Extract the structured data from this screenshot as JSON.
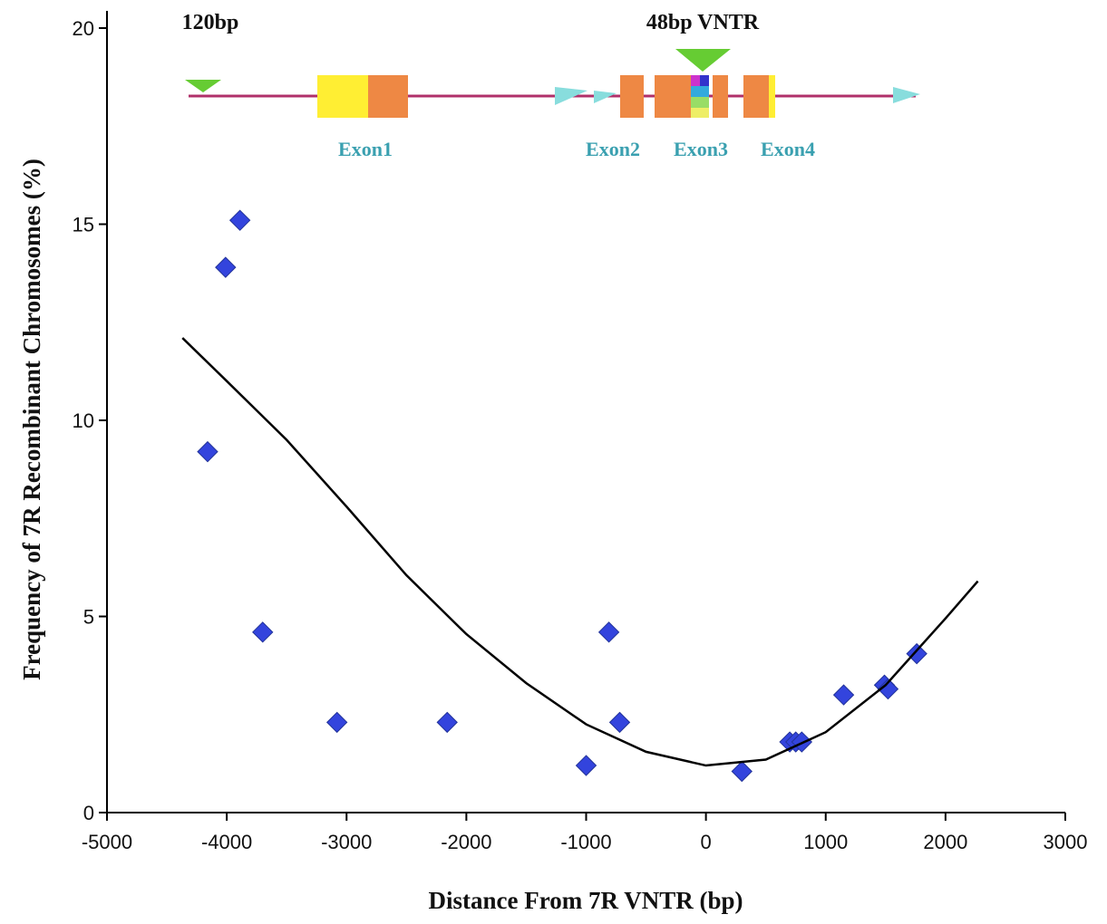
{
  "chart_data": {
    "type": "scatter",
    "x_label": "Distance From 7R VNTR (bp)",
    "y_label": "Frequency of 7R Recombinant Chromosomes (%)",
    "annotations": [
      "120bp",
      "48bp VNTR",
      "Exon1",
      "Exon2",
      "Exon3",
      "Exon4"
    ],
    "xlim": [
      -5000,
      3000
    ],
    "xticks": [
      -5000,
      -4000,
      -3000,
      -2000,
      -1000,
      0,
      1000,
      2000,
      3000
    ],
    "ylim": [
      0,
      20
    ],
    "yticks": [
      0,
      5,
      10,
      15,
      20
    ],
    "grid": false,
    "series": [
      {
        "color": "#3344dd",
        "marker": "diamond",
        "x": [
          -4160,
          -4010,
          -3890,
          -3700,
          -3080,
          -2160,
          -1000,
          -810,
          -720,
          300,
          700,
          750,
          800,
          1150,
          1490,
          1520,
          1760
        ],
        "values": [
          9.2,
          13.9,
          15.1,
          4.6,
          2.3,
          2.3,
          1.2,
          4.6,
          2.3,
          1.05,
          1.8,
          1.8,
          1.8,
          3.0,
          3.25,
          3.15,
          4.05
        ]
      },
      {
        "color": "#000000",
        "marker": "line",
        "x": [
          -4370,
          -4000,
          -3500,
          -3000,
          -2500,
          -2000,
          -1500,
          -1000,
          -500,
          0,
          500,
          1000,
          1500,
          2000,
          2270
        ],
        "values": [
          12.1,
          11.0,
          9.5,
          7.8,
          6.05,
          4.55,
          3.3,
          2.25,
          1.55,
          1.2,
          1.35,
          2.05,
          3.25,
          4.95,
          5.9
        ]
      }
    ]
  }
}
